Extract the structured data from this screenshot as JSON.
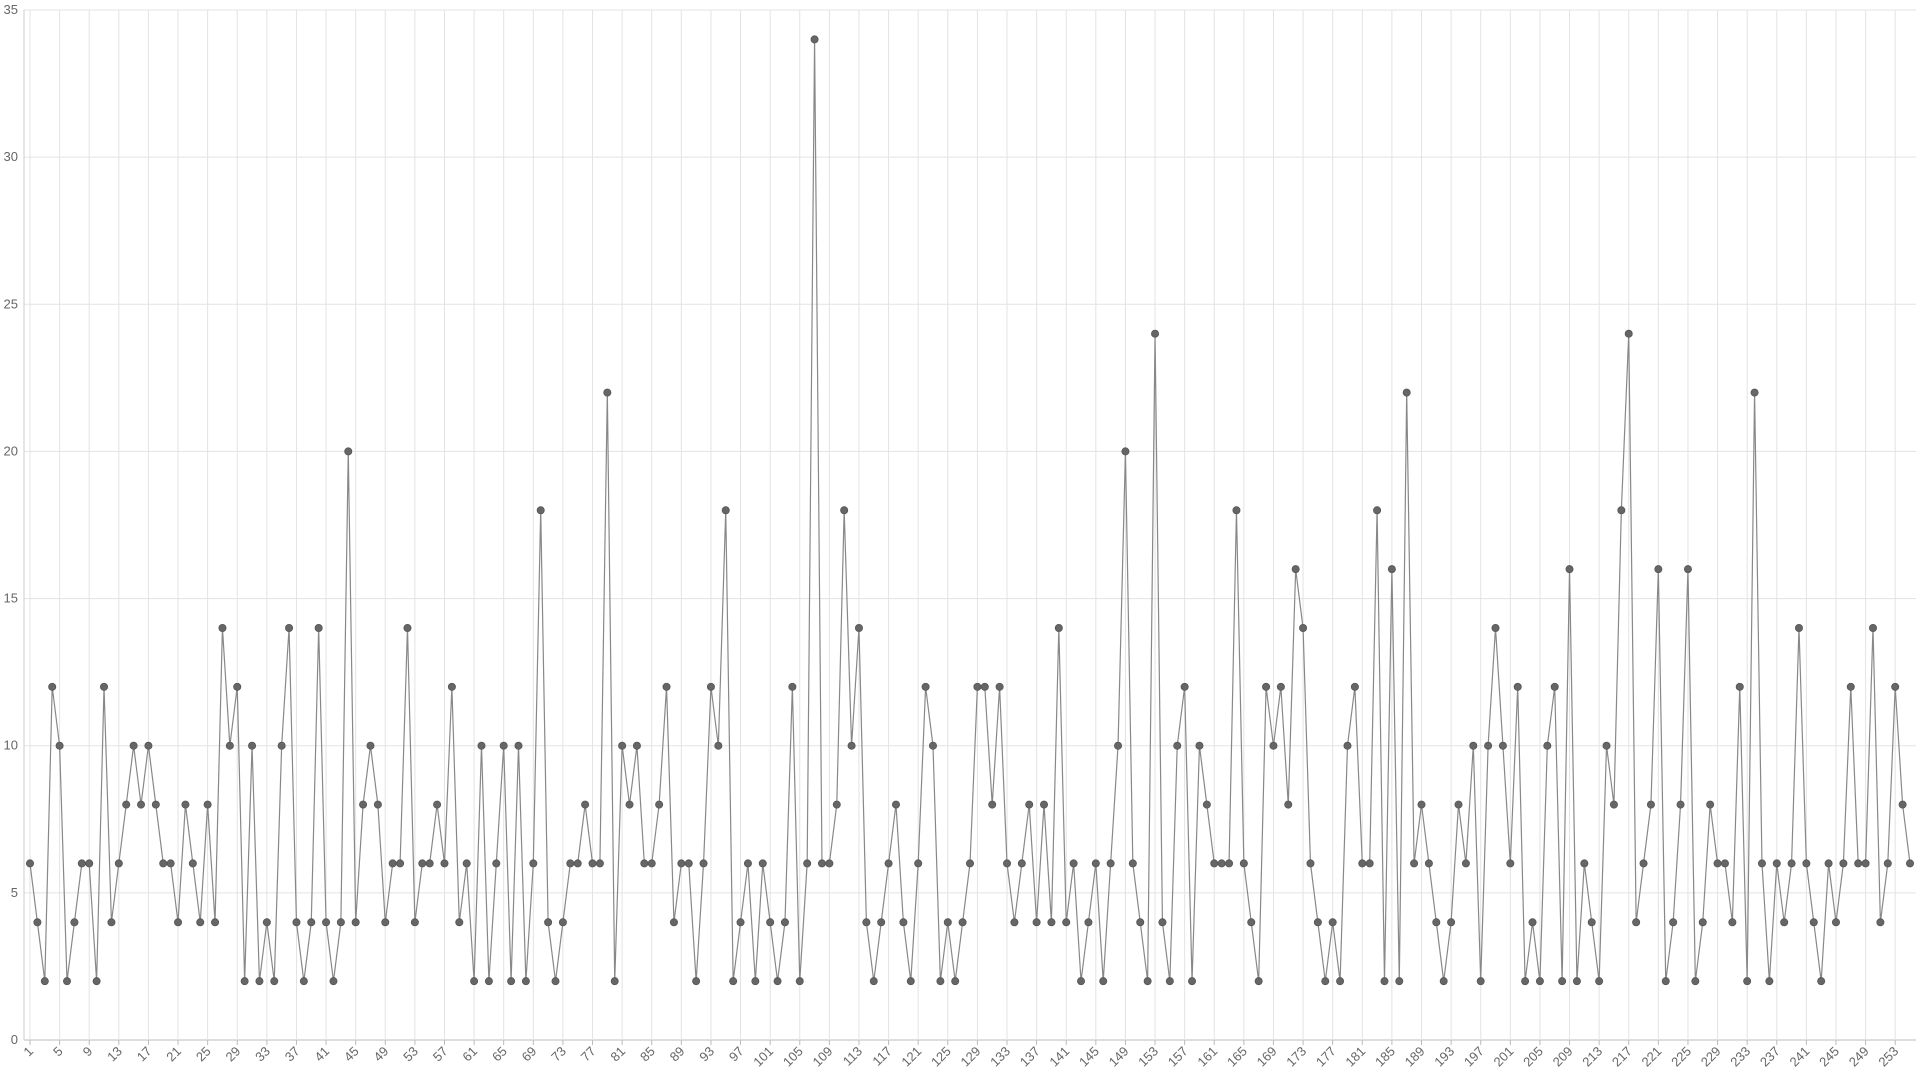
{
  "chart_data": {
    "type": "line",
    "color": "#666666",
    "grid": true,
    "x": [
      1,
      2,
      3,
      4,
      5,
      6,
      7,
      8,
      9,
      10,
      11,
      12,
      13,
      14,
      15,
      16,
      17,
      18,
      19,
      20,
      21,
      22,
      23,
      24,
      25,
      26,
      27,
      28,
      29,
      30,
      31,
      32,
      33,
      34,
      35,
      36,
      37,
      38,
      39,
      40,
      41,
      42,
      43,
      44,
      45,
      46,
      47,
      48,
      49,
      50,
      51,
      52,
      53,
      54,
      55,
      56,
      57,
      58,
      59,
      60,
      61,
      62,
      63,
      64,
      65,
      66,
      67,
      68,
      69,
      70,
      71,
      72,
      73,
      74,
      75,
      76,
      77,
      78,
      79,
      80,
      81,
      82,
      83,
      84,
      85,
      86,
      87,
      88,
      89,
      90,
      91,
      92,
      93,
      94,
      95,
      96,
      97,
      98,
      99,
      100,
      101,
      102,
      103,
      104,
      105,
      106,
      107,
      108,
      109,
      110,
      111,
      112,
      113,
      114,
      115,
      116,
      117,
      118,
      119,
      120,
      121,
      122,
      123,
      124,
      125,
      126,
      127,
      128,
      129,
      130,
      131,
      132,
      133,
      134,
      135,
      136,
      137,
      138,
      139,
      140,
      141,
      142,
      143,
      144,
      145,
      146,
      147,
      148,
      149,
      150,
      151,
      152,
      153,
      154,
      155,
      156,
      157,
      158,
      159,
      160,
      161,
      162,
      163,
      164,
      165,
      166,
      167,
      168,
      169,
      170,
      171,
      172,
      173,
      174,
      175,
      176,
      177,
      178,
      179,
      180,
      181,
      182,
      183,
      184,
      185,
      186,
      187,
      188,
      189,
      190,
      191,
      192,
      193,
      194,
      195,
      196,
      197,
      198,
      199,
      200,
      201,
      202,
      203,
      204,
      205,
      206,
      207,
      208,
      209,
      210,
      211,
      212,
      213,
      214,
      215,
      216,
      217,
      218,
      219,
      220,
      221,
      222,
      223,
      224,
      225,
      226,
      227,
      228,
      229,
      230,
      231,
      232,
      233,
      234,
      235,
      236,
      237,
      238,
      239,
      240,
      241,
      242,
      243,
      244,
      245,
      246,
      247,
      248,
      249,
      250,
      251,
      252,
      253,
      254,
      255
    ],
    "values": [
      6,
      4,
      2,
      12,
      10,
      2,
      4,
      6,
      6,
      2,
      12,
      4,
      6,
      8,
      10,
      8,
      10,
      8,
      6,
      6,
      4,
      8,
      6,
      4,
      8,
      4,
      14,
      10,
      12,
      2,
      10,
      2,
      4,
      2,
      10,
      14,
      4,
      2,
      4,
      14,
      4,
      2,
      4,
      20,
      4,
      8,
      10,
      8,
      4,
      6,
      6,
      14,
      4,
      6,
      6,
      8,
      6,
      12,
      4,
      6,
      2,
      10,
      2,
      6,
      10,
      2,
      10,
      2,
      6,
      18,
      4,
      2,
      4,
      6,
      6,
      8,
      6,
      6,
      22,
      2,
      10,
      8,
      10,
      6,
      6,
      8,
      12,
      4,
      6,
      6,
      2,
      6,
      12,
      10,
      18,
      2,
      4,
      6,
      2,
      6,
      4,
      2,
      4,
      12,
      2,
      6,
      34,
      6,
      6,
      8,
      18,
      10,
      14,
      4,
      2,
      4,
      6,
      8,
      4,
      2,
      6,
      12,
      10,
      2,
      4,
      2,
      4,
      6,
      12,
      12,
      8,
      12,
      6,
      4,
      6,
      8,
      4,
      8,
      4,
      14,
      4,
      6,
      2,
      4,
      6,
      2,
      6,
      10,
      20,
      6,
      4,
      2,
      24,
      4,
      2,
      10,
      12,
      2,
      10,
      8,
      6,
      6,
      6,
      18,
      6,
      4,
      2,
      12,
      10,
      12,
      8,
      16,
      14,
      6,
      4,
      2,
      4,
      2,
      10,
      12,
      6,
      6,
      18,
      2,
      16,
      2,
      22,
      6,
      8,
      6,
      4,
      2,
      4,
      8,
      6,
      10,
      2,
      10,
      14,
      10,
      6,
      12,
      2,
      4,
      2,
      10,
      12,
      2,
      16,
      2,
      6,
      4,
      2,
      10,
      8,
      18,
      24,
      4,
      6,
      8,
      16,
      2,
      4,
      8,
      16,
      2,
      4,
      8,
      6,
      6,
      4,
      12,
      2,
      22,
      6,
      2,
      6,
      4,
      6,
      14,
      6,
      4,
      2,
      6,
      4,
      6,
      12,
      6,
      6,
      14,
      4,
      6,
      12,
      8,
      6
    ],
    "xlim": [
      1,
      255
    ],
    "xticks": [
      1,
      5,
      9,
      13,
      17,
      21,
      25,
      29,
      33,
      37,
      41,
      45,
      49,
      53,
      57,
      61,
      65,
      69,
      73,
      77,
      81,
      85,
      89,
      93,
      97,
      101,
      105,
      109,
      113,
      117,
      121,
      125,
      129,
      133,
      137,
      141,
      145,
      149,
      153,
      157,
      161,
      165,
      169,
      173,
      177,
      181,
      185,
      189,
      193,
      197,
      201,
      205,
      209,
      213,
      217,
      221,
      225,
      229,
      233,
      237,
      241,
      245,
      249,
      253
    ],
    "ylim": [
      0,
      35
    ],
    "yticks": [
      0,
      5,
      10,
      15,
      20,
      25,
      30,
      35
    ]
  }
}
